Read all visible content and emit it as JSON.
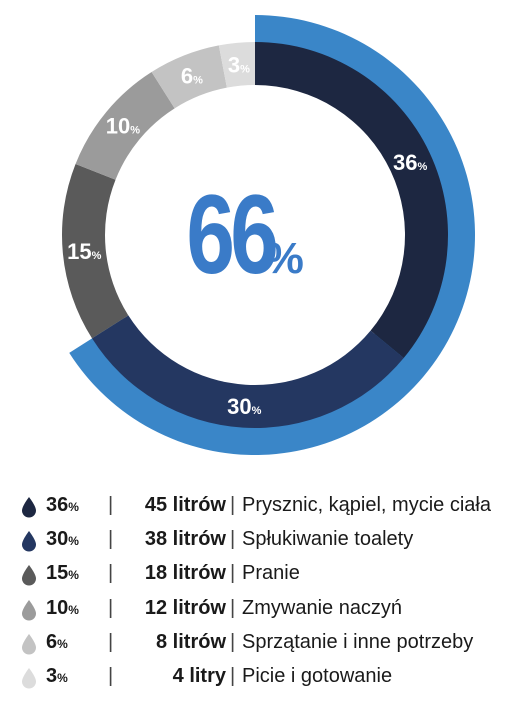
{
  "chart_data": {
    "type": "pie",
    "variant": "donut",
    "center_text": {
      "value": "66",
      "unit": "%"
    },
    "slices": [
      {
        "value": 36,
        "label": "36",
        "unit": "%",
        "color": "#1d2741"
      },
      {
        "value": 30,
        "label": "30",
        "unit": "%",
        "color": "#243761"
      },
      {
        "value": 15,
        "label": "15",
        "unit": "%",
        "color": "#5a5a5a"
      },
      {
        "value": 10,
        "label": "10",
        "unit": "%",
        "color": "#9b9b9b"
      },
      {
        "value": 6,
        "label": "6",
        "unit": "%",
        "color": "#c3c3c3"
      },
      {
        "value": 3,
        "label": "3",
        "unit": "%",
        "color": "#dcdcdc"
      }
    ],
    "highlight": {
      "value": 66,
      "color": "#3a86c8"
    }
  },
  "legend": [
    {
      "pct": "36",
      "unit": "%",
      "liters": "45 litrów",
      "desc": "Prysznic, kąpiel, mycie ciała",
      "color": "#1d2741"
    },
    {
      "pct": "30",
      "unit": "%",
      "liters": "38 litrów",
      "desc": "Spłukiwanie toalety",
      "color": "#243761"
    },
    {
      "pct": "15",
      "unit": "%",
      "liters": "18 litrów",
      "desc": "Pranie",
      "color": "#5a5a5a"
    },
    {
      "pct": "10",
      "unit": "%",
      "liters": "12 litrów",
      "desc": "Zmywanie naczyń",
      "color": "#9b9b9b"
    },
    {
      "pct": "6",
      "unit": "%",
      "liters": "8 litrów",
      "desc": "Sprzątanie i inne potrzeby",
      "color": "#c3c3c3"
    },
    {
      "pct": "3",
      "unit": "%",
      "liters": "4 litry",
      "desc": "Picie i gotowanie",
      "color": "#dcdcdc"
    }
  ],
  "separator": "|"
}
